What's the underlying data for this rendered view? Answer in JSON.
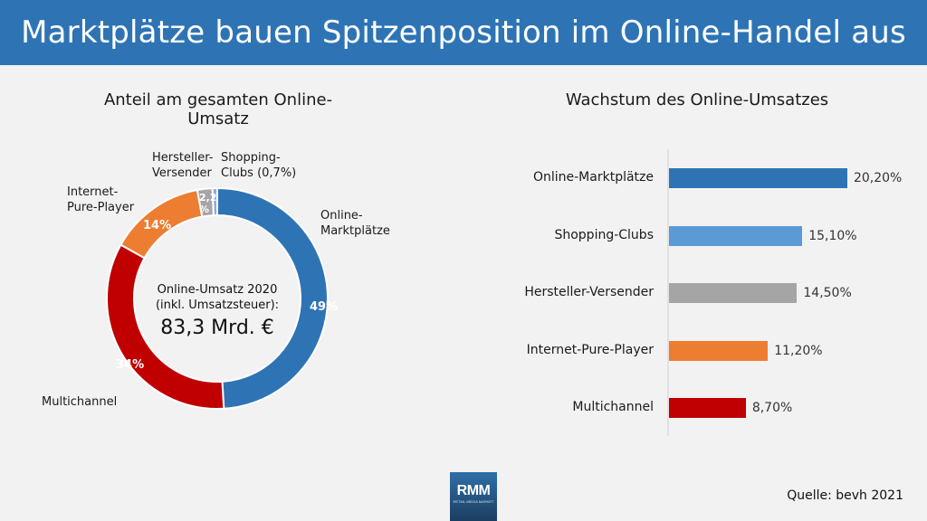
{
  "title": "Marktplätze bauen Spitzenposition im Online-Handel aus",
  "chart_data": [
    {
      "type": "pie",
      "title": "Anteil am gesamten Online-Umsatz",
      "center": {
        "line1": "Online-Umsatz 2020",
        "line2": "(inkl. Umsatzsteuer):",
        "value": "83,3 Mrd. €"
      },
      "slices": [
        {
          "name": "Online-\nMarktplätze",
          "value": 49,
          "pct_label": "49%",
          "color": "#2e74b5"
        },
        {
          "name": "Multichannel",
          "value": 34,
          "pct_label": "34%",
          "color": "#c00000"
        },
        {
          "name": "Internet-\nPure-Player",
          "value": 14,
          "pct_label": "14%",
          "color": "#ed7d31"
        },
        {
          "name": "Hersteller-\nVersender",
          "value": 2.2,
          "pct_label": "2,2\n%",
          "color": "#a5a5a5"
        },
        {
          "name": "Shopping-\nClubs (0,7%)",
          "value": 0.7,
          "pct_label": "",
          "color": "#8faadc"
        }
      ]
    },
    {
      "type": "bar",
      "orientation": "horizontal",
      "title": "Wachstum des Online-Umsatzes",
      "categories": [
        "Online-Marktplätze",
        "Shopping-Clubs",
        "Hersteller-Versender",
        "Internet-Pure-Player",
        "Multichannel"
      ],
      "values": [
        20.2,
        15.1,
        14.5,
        11.2,
        8.7
      ],
      "value_labels": [
        "20,20%",
        "15,10%",
        "14,50%",
        "11,20%",
        "8,70%"
      ],
      "colors": [
        "#2e74b5",
        "#5b9bd5",
        "#a5a5a5",
        "#ed7d31",
        "#c00000"
      ],
      "xlim": [
        0,
        24
      ]
    }
  ],
  "logo": {
    "main": "RMM",
    "sub": "RETAIL MEDIA MARKET"
  },
  "source": "Quelle: bevh 2021"
}
